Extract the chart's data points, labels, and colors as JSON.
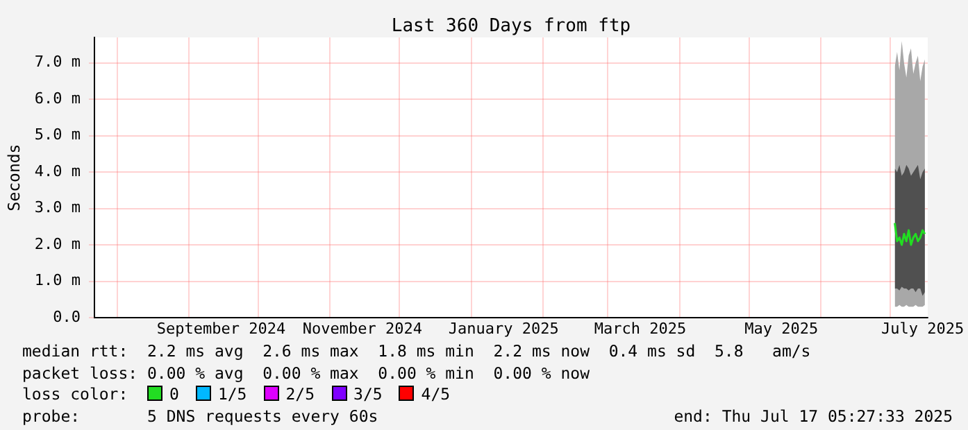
{
  "chart_data": {
    "type": "line",
    "title": "Last 360 Days from ftp",
    "ylabel": "Seconds",
    "legend_title": "loss color:",
    "legend": "bottom",
    "grid": true,
    "x": [
      "2025-07-03",
      "2025-07-04",
      "2025-07-05",
      "2025-07-06",
      "2025-07-07",
      "2025-07-08",
      "2025-07-09",
      "2025-07-10",
      "2025-07-11",
      "2025-07-12",
      "2025-07-13",
      "2025-07-14",
      "2025-07-15",
      "2025-07-16"
    ],
    "xlim": [
      "2024-07-22T05:27",
      "2025-07-17T05:27"
    ],
    "xticks": [
      {
        "value": "2024-08-01",
        "label": null
      },
      {
        "value": "2024-09-01",
        "label": null
      },
      {
        "value": "2024-09-15",
        "label": "September 2024"
      },
      {
        "value": "2024-10-01",
        "label": null
      },
      {
        "value": "2024-11-01",
        "label": null
      },
      {
        "value": "2024-11-15",
        "label": "November 2024"
      },
      {
        "value": "2024-12-01",
        "label": null
      },
      {
        "value": "2025-01-01",
        "label": null
      },
      {
        "value": "2025-01-15",
        "label": "January 2025"
      },
      {
        "value": "2025-02-01",
        "label": null
      },
      {
        "value": "2025-03-01",
        "label": null
      },
      {
        "value": "2025-03-15",
        "label": "March 2025"
      },
      {
        "value": "2025-04-01",
        "label": null
      },
      {
        "value": "2025-05-01",
        "label": null
      },
      {
        "value": "2025-05-15",
        "label": "May 2025"
      },
      {
        "value": "2025-06-01",
        "label": null
      },
      {
        "value": "2025-07-01",
        "label": null
      },
      {
        "value": "2025-07-15",
        "label": "July 2025"
      }
    ],
    "ylim": [
      0,
      7.7
    ],
    "yticks": [
      {
        "value": 0,
        "label": "0.0"
      },
      {
        "value": 1,
        "label": "1.0 m"
      },
      {
        "value": 2,
        "label": "2.0 m"
      },
      {
        "value": 3,
        "label": "3.0 m"
      },
      {
        "value": 4,
        "label": "4.0 m"
      },
      {
        "value": 5,
        "label": "5.0 m"
      },
      {
        "value": 6,
        "label": "6.0 m"
      },
      {
        "value": 7,
        "label": "7.0 m"
      }
    ],
    "series": [
      {
        "color": "#a8a8a8",
        "values": [
          null,
          null,
          null,
          null,
          null,
          null,
          null,
          null,
          null,
          null,
          null,
          null,
          null,
          null
        ],
        "lower": [
          0.3,
          0.3,
          0.35,
          0.3,
          0.3,
          0.35,
          0.3,
          0.3,
          0.3,
          0.35,
          0.3,
          0.3,
          0.3,
          0.35
        ],
        "upper": [
          6.9,
          7.3,
          6.8,
          7.6,
          7.0,
          6.6,
          7.2,
          7.4,
          6.7,
          7.0,
          7.2,
          6.5,
          6.9,
          7.1
        ]
      },
      {
        "color": "#505050",
        "values": [
          null,
          null,
          null,
          null,
          null,
          null,
          null,
          null,
          null,
          null,
          null,
          null,
          null,
          null
        ],
        "lower": [
          0.8,
          0.8,
          0.75,
          0.85,
          0.8,
          0.8,
          0.75,
          0.8,
          0.8,
          0.7,
          0.8,
          0.8,
          0.6,
          0.7
        ],
        "upper": [
          4.1,
          4.0,
          4.2,
          3.9,
          4.0,
          4.2,
          4.1,
          3.9,
          4.0,
          4.1,
          4.2,
          3.8,
          4.0,
          4.1
        ]
      },
      {
        "name": "0",
        "color": "#22dd22",
        "values": [
          2.6,
          2.1,
          2.2,
          2.0,
          2.3,
          2.1,
          2.4,
          2.0,
          2.2,
          2.3,
          2.1,
          2.2,
          2.4,
          2.3
        ]
      },
      {
        "name": "1/5",
        "color": "#00b8ff",
        "values": [
          null,
          null,
          null,
          null,
          null,
          null,
          null,
          null,
          null,
          null,
          null,
          null,
          null,
          null
        ]
      },
      {
        "name": "2/5",
        "color": "#dd00ff",
        "values": [
          null,
          null,
          null,
          null,
          null,
          null,
          null,
          null,
          null,
          null,
          null,
          null,
          null,
          null
        ]
      },
      {
        "name": "3/5",
        "color": "#7f00ff",
        "values": [
          null,
          null,
          null,
          null,
          null,
          null,
          null,
          null,
          null,
          null,
          null,
          null,
          null,
          null
        ]
      },
      {
        "name": "4/5",
        "color": "#ff0000",
        "values": [
          null,
          null,
          null,
          null,
          null,
          null,
          null,
          null,
          null,
          null,
          null,
          null,
          null,
          null
        ]
      }
    ],
    "annotations": [
      "median rtt:  2.2 ms avg  2.6 ms max  1.8 ms min  2.2 ms now  0.4 ms sd  5.8   am/s",
      "packet loss: 0.00 % avg  0.00 % max  0.00 % min  0.00 % now",
      "probe:       5 DNS requests every 60s",
      "end: Thu Jul 17 05:27:33 2025"
    ]
  }
}
